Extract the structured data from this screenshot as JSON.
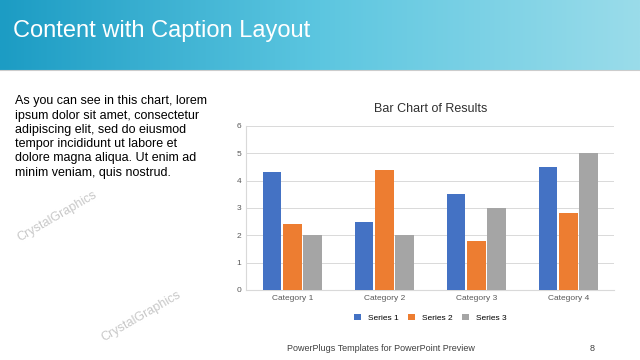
{
  "slide": {
    "title": "Content with Caption Layout",
    "caption": [
      "As you can see in this chart, lorem",
      "ipsum dolor sit amet, consectetur",
      "adipiscing elit, sed do eiusmod",
      "tempor incididunt ut labore et",
      "dolore magna aliqua. Ut enim ad",
      "minim veniam, quis nostrud."
    ],
    "footer": "PowerPlugs Templates for PowerPoint Preview",
    "page": "8",
    "watermark": "CrystalGraphics"
  },
  "chart_data": {
    "type": "bar",
    "title": "Bar Chart of Results",
    "categories": [
      "Category 1",
      "Category 2",
      "Category 3",
      "Category 4"
    ],
    "series": [
      {
        "name": "Series 1",
        "color": "#4472c4",
        "values": [
          4.3,
          2.5,
          3.5,
          4.5
        ]
      },
      {
        "name": "Series 2",
        "color": "#ed7d31",
        "values": [
          2.4,
          4.4,
          1.8,
          2.8
        ]
      },
      {
        "name": "Series 3",
        "color": "#a5a5a5",
        "values": [
          2.0,
          2.0,
          3.0,
          5.0
        ]
      }
    ],
    "ylim": [
      0,
      6
    ],
    "yticks": [
      0,
      1,
      2,
      3,
      4,
      5,
      6
    ],
    "grid": true,
    "legend": "bottom"
  }
}
